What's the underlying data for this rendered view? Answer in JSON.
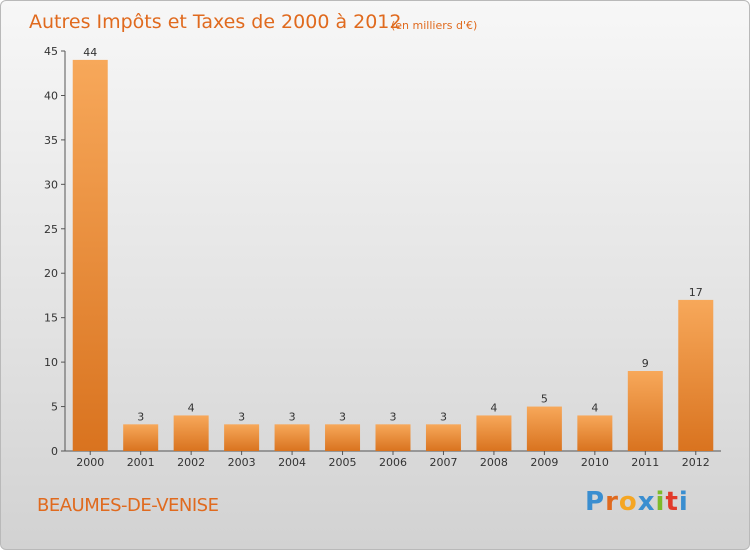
{
  "title": "Autres Impôts et Taxes de 2000 à 2012",
  "unit": "(en milliers d'€)",
  "place": "BEAUMES-DE-VENISE",
  "logo": {
    "text": "Proxiti",
    "colors": [
      "#3a8ed0",
      "#e06a1e",
      "#f5a623",
      "#3a8ed0",
      "#7dbb2a",
      "#e23a2a",
      "#3a8ed0"
    ]
  },
  "colors": {
    "accent": "#e06a1e",
    "bar_light": "#f7a85a",
    "bar_dark": "#d9731f"
  },
  "chart_data": {
    "type": "bar",
    "title": "Autres Impôts et Taxes de 2000 à 2012",
    "subtitle": "(en milliers d'€)",
    "categories": [
      "2000",
      "2001",
      "2002",
      "2003",
      "2004",
      "2005",
      "2006",
      "2007",
      "2008",
      "2009",
      "2010",
      "2011",
      "2012"
    ],
    "values": [
      44,
      3,
      4,
      3,
      3,
      3,
      3,
      3,
      4,
      5,
      4,
      9,
      17
    ],
    "ylim": [
      0,
      45
    ],
    "yticks": [
      0,
      5,
      10,
      15,
      20,
      25,
      30,
      35,
      40,
      45
    ],
    "grid": false,
    "legend": "none"
  }
}
